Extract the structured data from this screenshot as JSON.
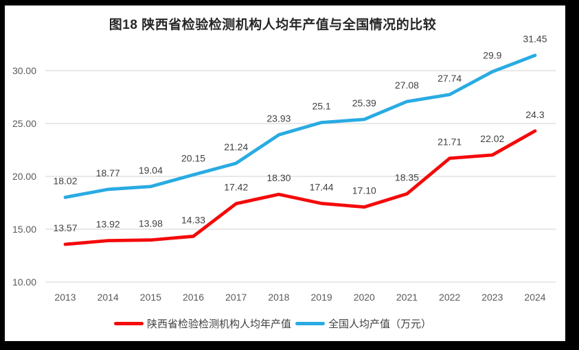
{
  "title": "图18 陕西省检验检测机构人均年产值与全国情况的比较",
  "chart_data": {
    "type": "line",
    "title": "图18 陕西省检验检测机构人均年产值与全国情况的比较",
    "categories": [
      "2013",
      "2014",
      "2015",
      "2016",
      "2017",
      "2018",
      "2019",
      "2020",
      "2021",
      "2022",
      "2023",
      "2024"
    ],
    "series": [
      {
        "name": "陕西省检验检测机构人均年产值",
        "color": "#F40A0A",
        "values": [
          13.57,
          13.92,
          13.98,
          14.33,
          17.42,
          18.3,
          17.44,
          17.1,
          18.35,
          21.71,
          22.02,
          24.3
        ],
        "labels": [
          "13.57",
          "13.92",
          "13.98",
          "14.33",
          "17.42",
          "18.30",
          "17.44",
          "17.10",
          "18.35",
          "21.71",
          "22.02",
          "24.3"
        ]
      },
      {
        "name": "全国人均产值（万元）",
        "color": "#29ABE2",
        "values": [
          18.02,
          18.77,
          19.04,
          20.15,
          21.24,
          23.93,
          25.1,
          25.39,
          27.08,
          27.74,
          29.9,
          31.45
        ],
        "labels": [
          "18.02",
          "18.77",
          "19.04",
          "20.15",
          "21.24",
          "23.93",
          "25.1",
          "25.39",
          "27.08",
          "27.74",
          "29.9",
          "31.45"
        ]
      }
    ],
    "xlabel": "",
    "ylabel": "",
    "ylim": [
      10,
      30
    ],
    "yticks": [
      {
        "value": 10,
        "label": "10.00"
      },
      {
        "value": 15,
        "label": "15.00"
      },
      {
        "value": 20,
        "label": "20.00"
      },
      {
        "value": 25,
        "label": "25.00"
      },
      {
        "value": 30,
        "label": "30.00"
      }
    ],
    "grid": true,
    "legend_position": "bottom"
  },
  "legend": {
    "items": [
      {
        "label": "陕西省检验检测机构人均年产值",
        "color": "#F40A0A"
      },
      {
        "label": "全国人均产值（万元）",
        "color": "#29ABE2"
      }
    ]
  },
  "colors": {
    "frame": "#000000",
    "background": "#FFFFFF",
    "gridline": "#D9D9D9",
    "axis_text": "#595959",
    "data_label_text": "#404040",
    "title_text": "#262626",
    "series_shaanxi": "#F40A0A",
    "series_national": "#29ABE2"
  }
}
